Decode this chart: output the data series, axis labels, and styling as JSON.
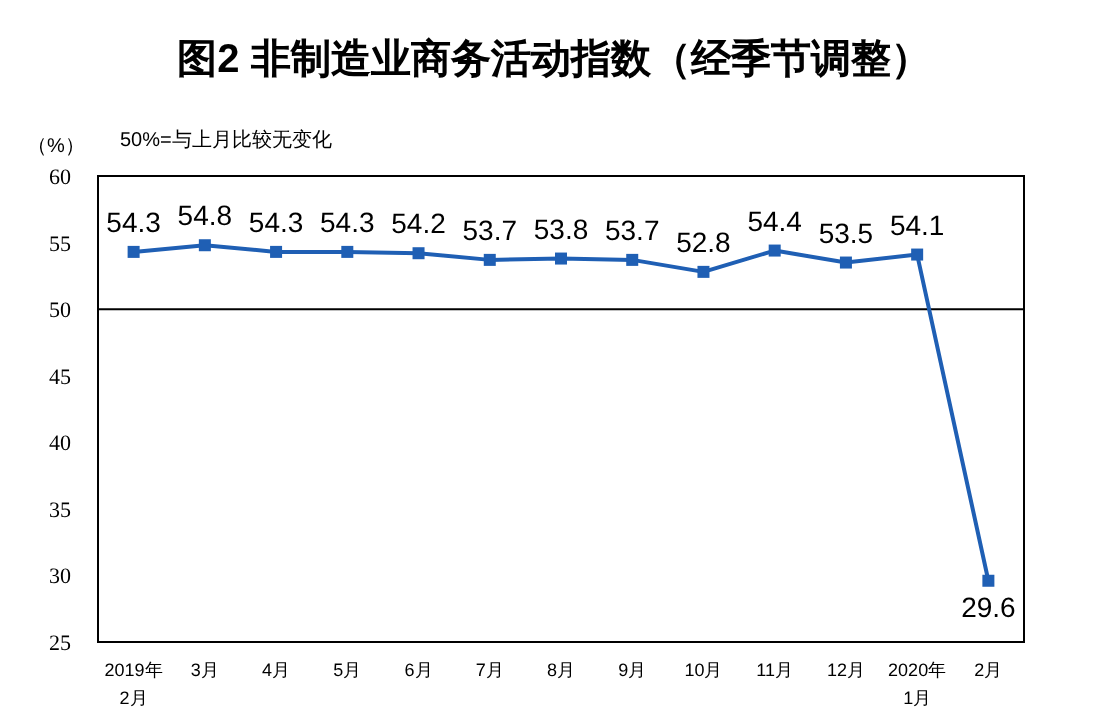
{
  "chart_data": {
    "type": "line",
    "title": "图2  非制造业商务活动指数（经季节调整）",
    "ylabel": "（%）",
    "annotations": [
      "50%=与上月比较无变化"
    ],
    "categories": [
      "2019年\n2月",
      "3月",
      "4月",
      "5月",
      "6月",
      "7月",
      "8月",
      "9月",
      "10月",
      "11月",
      "12月",
      "2020年\n1月",
      "2月"
    ],
    "series": [
      {
        "color": "#1f5fb4",
        "values": [
          54.3,
          54.8,
          54.3,
          54.3,
          54.2,
          53.7,
          53.8,
          53.7,
          52.8,
          54.4,
          53.5,
          54.1,
          29.6
        ]
      }
    ],
    "ylim": [
      25,
      60
    ],
    "yticks": [
      25,
      30,
      35,
      40,
      45,
      50,
      55,
      60
    ],
    "ref_lines": [
      {
        "axis": "y",
        "value": 50,
        "color": "#000000"
      }
    ],
    "data_labels": true,
    "marker": "square",
    "grid": false
  }
}
